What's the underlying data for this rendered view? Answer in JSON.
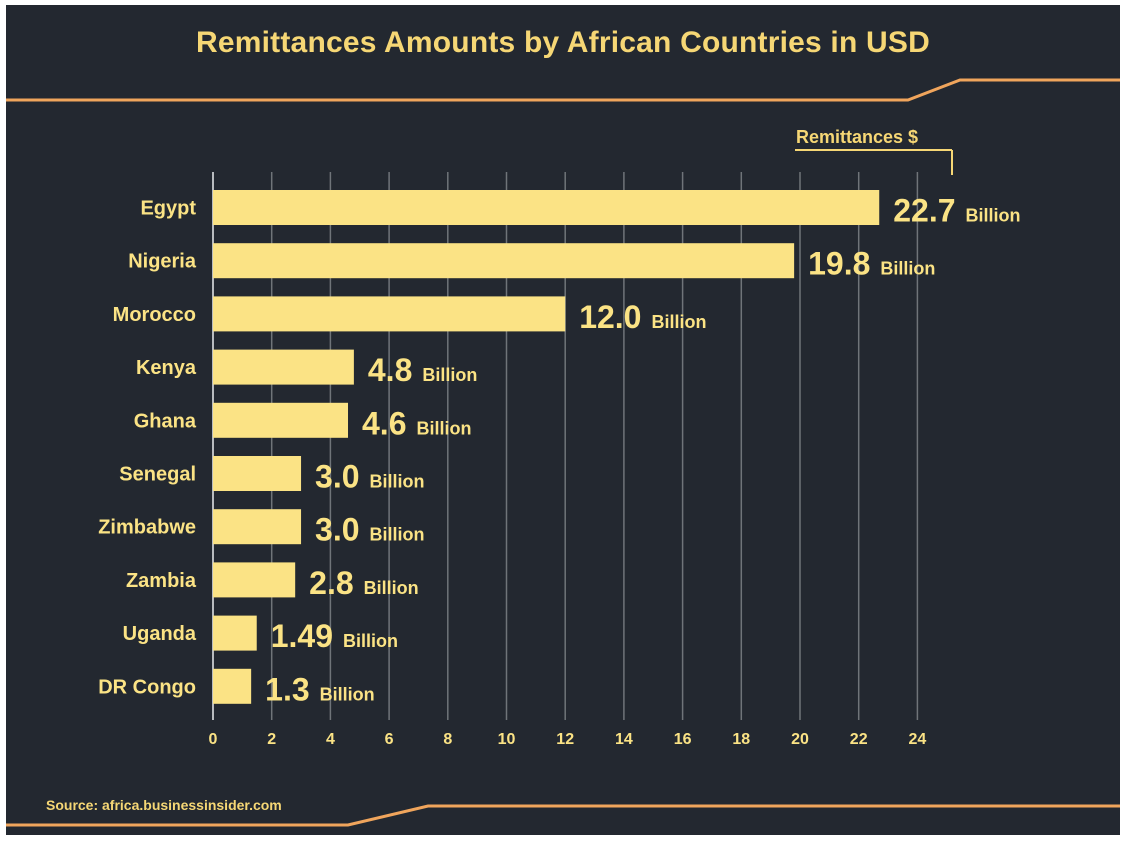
{
  "colors": {
    "background": "#232830",
    "accent": "#f6d775",
    "bar": "#fbe385",
    "grid": "#8a8d92",
    "rule": "#f0a55c"
  },
  "chart_data": {
    "type": "bar",
    "orientation": "horizontal",
    "title": "Remittances Amounts by African Countries in USD",
    "series_label": "Remittances $",
    "value_unit": "Billion",
    "categories": [
      "Egypt",
      "Nigeria",
      "Morocco",
      "Kenya",
      "Ghana",
      "Senegal",
      "Zimbabwe",
      "Zambia",
      "Uganda",
      "DR Congo"
    ],
    "values": [
      22.7,
      19.8,
      12.0,
      4.8,
      4.6,
      3.0,
      3.0,
      2.8,
      1.49,
      1.3
    ],
    "value_labels": [
      "22.7",
      "19.8",
      "12.0",
      "4.8",
      "4.6",
      "3.0",
      "3.0",
      "2.8",
      "1.49",
      "1.3"
    ],
    "xlim": [
      0,
      24
    ],
    "xticks": [
      0,
      2,
      4,
      6,
      8,
      10,
      12,
      14,
      16,
      18,
      20,
      22,
      24
    ],
    "grid": true,
    "source": "Source: africa.businessinsider.com"
  }
}
